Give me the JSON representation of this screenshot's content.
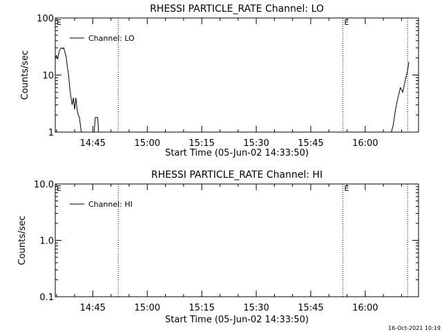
{
  "chart_data": [
    {
      "type": "line",
      "title": "RHESSI PARTICLE_RATE Channel: LO",
      "xlabel": "Start Time (05-Jun-02 14:33:50)",
      "ylabel": "Counts/sec",
      "y_scale": "log",
      "ylim": [
        1,
        100
      ],
      "y_ticks": [
        1,
        10,
        100
      ],
      "y_tick_labels": [
        "1",
        "10",
        "100"
      ],
      "xlim": [
        "14:34:40",
        "16:14:40"
      ],
      "x_ticks": [
        "14:45",
        "15:00",
        "15:15",
        "15:30",
        "15:45",
        "16:00"
      ],
      "vertical_markers": [
        {
          "x": "14:52:00",
          "label": ""
        },
        {
          "x": "15:53:50",
          "label": "E"
        },
        {
          "x": "16:11:40",
          "label": ""
        }
      ],
      "edge_marker_label": "E",
      "legend": {
        "position": "top-left",
        "entries": [
          "Channel: LO"
        ]
      },
      "series": [
        {
          "name": "Channel: LO",
          "x": [
            "14:34:40",
            "14:35:00",
            "14:35:20",
            "14:35:40",
            "14:36:00",
            "14:36:20",
            "14:36:40",
            "14:37:00",
            "14:37:20",
            "14:37:40",
            "14:38:00",
            "14:38:20",
            "14:38:40",
            "14:39:00",
            "14:39:20",
            "14:39:40",
            "14:40:00",
            "14:40:20",
            "14:40:40",
            "14:41:00",
            "14:41:20",
            "14:41:40",
            "14:42:00"
          ],
          "values": [
            20,
            22,
            19,
            25,
            28,
            30,
            29,
            30,
            25,
            21,
            14,
            10,
            6,
            4,
            3,
            4,
            2.5,
            4,
            2.5,
            2,
            1.8,
            1.2,
            0.9
          ],
          "segments": [
            {
              "x": [
                "14:38:20",
                "14:38:40",
                "14:39:00",
                "14:39:20",
                "14:39:40",
                "14:40:00",
                "14:40:20",
                "14:40:40",
                "14:41:00",
                "14:41:20",
                "14:41:40",
                "14:42:00"
              ],
              "values": [
                10,
                6,
                4,
                3,
                4,
                2.5,
                4,
                2.5,
                2,
                1.8,
                1.2,
                0.9
              ]
            },
            {
              "x": [
                "14:45:20",
                "14:45:40",
                "14:46:00",
                "14:46:20",
                "14:46:40"
              ],
              "values": [
                0.9,
                1.8,
                1.8,
                1.8,
                0.9
              ]
            },
            {
              "x": [
                "16:07:00",
                "16:07:40",
                "16:08:20",
                "16:09:00",
                "16:09:40",
                "16:10:20",
                "16:11:00",
                "16:11:40",
                "16:12:00"
              ],
              "values": [
                0.9,
                1.3,
                2.5,
                4,
                6,
                5,
                8,
                12,
                17
              ]
            }
          ]
        }
      ]
    },
    {
      "type": "line",
      "title": "RHESSI PARTICLE_RATE Channel: HI",
      "xlabel": "Start Time (05-Jun-02 14:33:50)",
      "ylabel": "Counts/sec",
      "y_scale": "log",
      "ylim": [
        0.1,
        10
      ],
      "y_ticks": [
        0.1,
        1,
        10
      ],
      "y_tick_labels": [
        "0.1",
        "1.0",
        "10.0"
      ],
      "xlim": [
        "14:34:40",
        "16:14:40"
      ],
      "x_ticks": [
        "14:45",
        "15:00",
        "15:15",
        "15:30",
        "15:45",
        "16:00"
      ],
      "vertical_markers": [
        {
          "x": "14:52:00",
          "label": ""
        },
        {
          "x": "15:53:50",
          "label": "E"
        },
        {
          "x": "16:11:40",
          "label": ""
        }
      ],
      "edge_marker_label": "E",
      "legend": {
        "position": "top-left",
        "entries": [
          "Channel: HI"
        ]
      },
      "series": [
        {
          "name": "Channel: HI",
          "x": [],
          "values": [],
          "segments": []
        }
      ]
    }
  ],
  "footer": {
    "timestamp": "16-Oct-2021 10:19"
  }
}
